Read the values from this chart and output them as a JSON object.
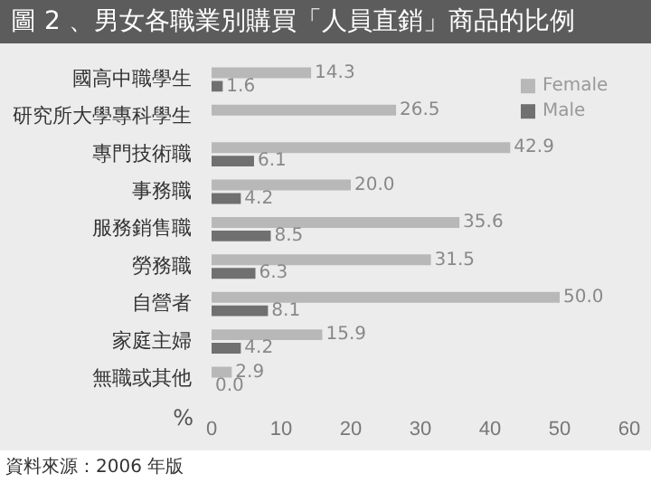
{
  "chart_data": {
    "type": "bar",
    "orientation": "horizontal",
    "title": "圖 2 、男女各職業別購買「人員直銷」商品的比例",
    "xlabel": "%",
    "categories": [
      "國高中職學生",
      "研究所大學專科學生",
      "專門技術職",
      "事務職",
      "服務銷售職",
      "勞務職",
      "自營者",
      "家庭主婦",
      "無職或其他"
    ],
    "series": [
      {
        "name": "Female",
        "color": "#b8b8b8",
        "values": [
          14.3,
          26.5,
          42.9,
          20.0,
          35.6,
          31.5,
          50.0,
          15.9,
          2.9
        ],
        "value_labels": [
          "14.3",
          "26.5",
          "42.9",
          "20.0",
          "35.6",
          "31.5",
          "50.0",
          "15.9",
          "2.9"
        ]
      },
      {
        "name": "Male",
        "color": "#707070",
        "values": [
          1.6,
          null,
          6.1,
          4.2,
          8.5,
          6.3,
          8.1,
          4.2,
          0.0
        ],
        "value_labels": [
          "1.6",
          null,
          "6.1",
          "4.2",
          "8.5",
          "6.3",
          "8.1",
          "4.2",
          "0.0"
        ]
      }
    ],
    "xlim": [
      0,
      60
    ],
    "xticks": [
      0,
      10,
      20,
      30,
      40,
      50,
      60
    ],
    "grid": false,
    "legend": "top right",
    "annotations": [
      "資料來源：2006 年版"
    ]
  }
}
